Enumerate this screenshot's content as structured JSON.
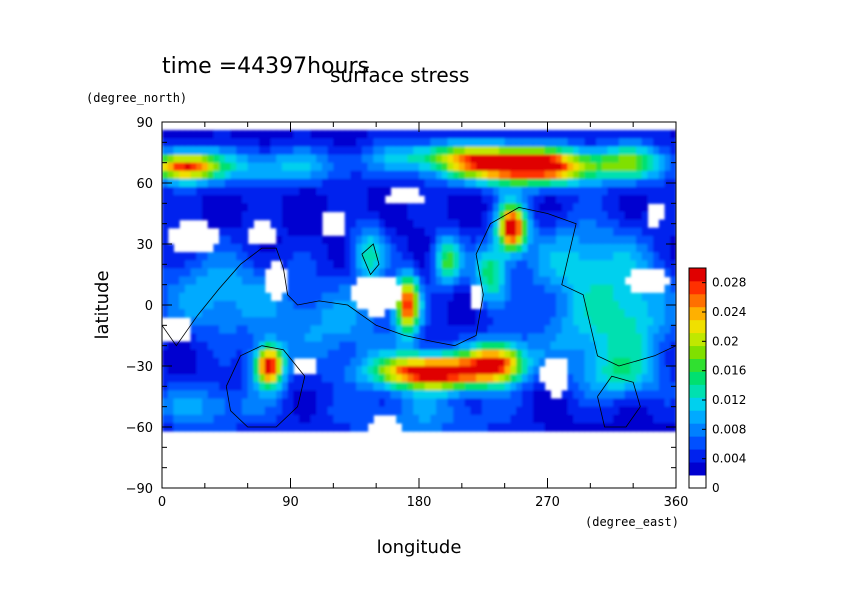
{
  "chart_data": {
    "type": "heatmap",
    "time_label": "time =44397hours",
    "title": "surface stress",
    "xlabel": "longitude",
    "ylabel": "latitude",
    "x_unit": "(degree_east)",
    "y_unit": "(degree_north)",
    "xlim": [
      0,
      360
    ],
    "ylim": [
      -90,
      90
    ],
    "x_ticks": [
      0,
      90,
      180,
      270,
      360
    ],
    "y_ticks": [
      -90,
      -60,
      -30,
      0,
      30,
      60,
      90
    ],
    "x_tick_labels": [
      "0",
      "90",
      "180",
      "270",
      "360"
    ],
    "y_tick_labels": [
      "−90",
      "−60",
      "−30",
      "0",
      "30",
      "60",
      "90"
    ],
    "colorbar": {
      "min": 0,
      "max": 0.03,
      "tick_values": [
        0,
        0.004,
        0.008,
        0.012,
        0.016,
        0.02,
        0.024,
        0.028
      ],
      "tick_labels": [
        "0",
        "0.004",
        "0.008",
        "0.012",
        "0.016",
        "0.02",
        "0.024",
        "0.028"
      ],
      "colors": [
        "#ffffff",
        "#0000d0",
        "#0022ee",
        "#0050ff",
        "#0080ff",
        "#00aaff",
        "#00d0ee",
        "#00e0b0",
        "#00e070",
        "#30e030",
        "#80e000",
        "#c0e800",
        "#f0e000",
        "#ffb000",
        "#ff7000",
        "#ff3000",
        "#e00000"
      ]
    },
    "features": [
      {
        "lon": 255,
        "lat": 68,
        "value": 0.03,
        "sx": 34,
        "sy": 6
      },
      {
        "lon": 15,
        "lat": 68,
        "value": 0.024,
        "sx": 16,
        "sy": 5
      },
      {
        "lon": 75,
        "lat": 68,
        "value": 0.008,
        "sx": 40,
        "sy": 6
      },
      {
        "lon": 205,
        "lat": 73,
        "value": 0.012,
        "sx": 35,
        "sy": 5
      },
      {
        "lon": 330,
        "lat": 70,
        "value": 0.012,
        "sx": 20,
        "sy": 6
      },
      {
        "lon": 245,
        "lat": 38,
        "value": 0.028,
        "sx": 7,
        "sy": 8
      },
      {
        "lon": 172,
        "lat": 0,
        "value": 0.024,
        "sx": 6,
        "sy": 10
      },
      {
        "lon": 75,
        "lat": -30,
        "value": 0.028,
        "sx": 7,
        "sy": 7
      },
      {
        "lon": 190,
        "lat": -33,
        "value": 0.03,
        "sx": 28,
        "sy": 6
      },
      {
        "lon": 235,
        "lat": -28,
        "value": 0.022,
        "sx": 14,
        "sy": 7
      },
      {
        "lon": 200,
        "lat": 22,
        "value": 0.014,
        "sx": 7,
        "sy": 8
      },
      {
        "lon": 230,
        "lat": 15,
        "value": 0.012,
        "sx": 8,
        "sy": 10
      },
      {
        "lon": 145,
        "lat": 25,
        "value": 0.01,
        "sx": 8,
        "sy": 10
      },
      {
        "lon": 320,
        "lat": -35,
        "value": 0.008,
        "sx": 20,
        "sy": 8
      },
      {
        "lon": 290,
        "lat": 20,
        "value": 0.008,
        "sx": 25,
        "sy": 15
      },
      {
        "lon": 40,
        "lat": 5,
        "value": 0.007,
        "sx": 30,
        "sy": 15
      },
      {
        "lon": 120,
        "lat": -10,
        "value": 0.006,
        "sx": 30,
        "sy": 15
      },
      {
        "lon": 300,
        "lat": -15,
        "value": 0.006,
        "sx": 30,
        "sy": 12
      },
      {
        "lon": 30,
        "lat": -50,
        "value": 0.006,
        "sx": 30,
        "sy": 8
      },
      {
        "lon": 180,
        "lat": -55,
        "value": 0.005,
        "sx": 40,
        "sy": 8
      },
      {
        "lon": 330,
        "lat": 0,
        "value": 0.007,
        "sx": 20,
        "sy": 20
      }
    ],
    "background_value": 0.003,
    "white_regions": [
      {
        "lon": 22,
        "lat": 33,
        "rx": 18,
        "ry": 8
      },
      {
        "lon": 70,
        "lat": 35,
        "rx": 10,
        "ry": 6
      },
      {
        "lon": 80,
        "lat": 12,
        "rx": 8,
        "ry": 10
      },
      {
        "lon": 150,
        "lat": 5,
        "rx": 18,
        "ry": 10
      },
      {
        "lon": 120,
        "lat": 40,
        "rx": 10,
        "ry": 7
      },
      {
        "lon": 170,
        "lat": 53,
        "rx": 14,
        "ry": 5
      },
      {
        "lon": 340,
        "lat": 12,
        "rx": 18,
        "ry": 6
      },
      {
        "lon": 345,
        "lat": 45,
        "rx": 6,
        "ry": 6
      },
      {
        "lon": 10,
        "lat": -12,
        "rx": 12,
        "ry": 6
      },
      {
        "lon": 220,
        "lat": 4,
        "rx": 6,
        "ry": 8
      },
      {
        "lon": 100,
        "lat": -30,
        "rx": 10,
        "ry": 6
      },
      {
        "lon": 275,
        "lat": -35,
        "rx": 10,
        "ry": 10
      },
      {
        "lon": 155,
        "lat": -60,
        "rx": 12,
        "ry": 5
      },
      {
        "lon": 20,
        "lat": -75,
        "rx": 200,
        "ry": 10
      }
    ]
  }
}
